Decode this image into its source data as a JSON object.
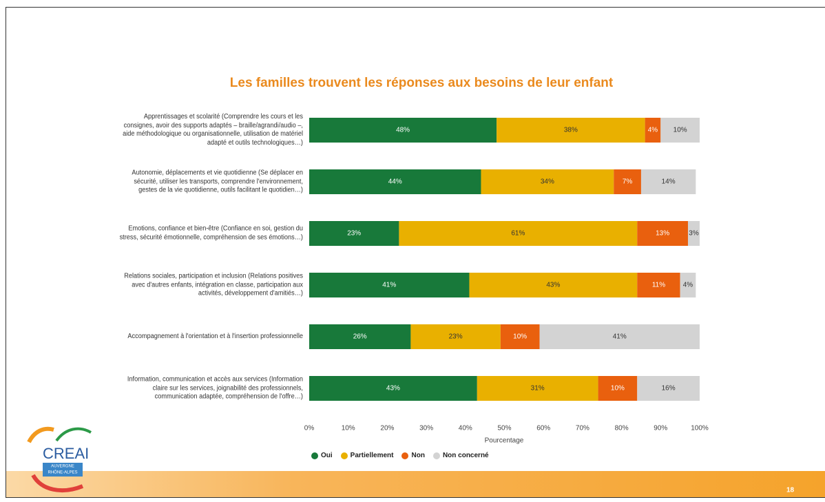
{
  "slide_number": "18",
  "logo": {
    "name": "CREAI",
    "region": [
      "AUVERGNE",
      "RHÔNE-ALPES"
    ]
  },
  "chart_data": {
    "type": "bar",
    "orientation": "horizontal",
    "stacked": true,
    "title": "Les familles trouvent les réponses aux besoins de leur enfant",
    "xlabel": "Pourcentage",
    "categories": [
      "Apprentissages et scolarité (Comprendre les cours et les consignes, avoir des supports adaptés – braille/agrandi/audio –, aide méthodologique ou organisationnelle, utilisation de matériel adapté et outils technologiques…)",
      "Autonomie, déplacements et vie quotidienne (Se déplacer en sécurité, utiliser les transports, comprendre l'environnement, gestes de la vie quotidienne, outils facilitant le quotidien…)",
      "Emotions, confiance et bien-être (Confiance en soi, gestion du stress, sécurité émotionnelle, compréhension de ses émotions…)",
      "Relations sociales, participation et inclusion (Relations positives avec d'autres enfants, intégration en classe, participation aux activités, développement d'amitiés…)",
      "Accompagnement à l'orientation et à l'insertion professionnelle",
      "Information, communication et accès aux services (Information claire sur les services, joignabilité des professionnels, communication adaptée, compréhension de l'offre…)"
    ],
    "series": [
      {
        "name": "Oui",
        "color": "#18793a",
        "values": [
          48,
          44,
          23,
          41,
          26,
          43
        ],
        "value_labels": [
          "48%",
          "44%",
          "23%",
          "41%",
          "26%",
          "43%"
        ]
      },
      {
        "name": "Partiellement",
        "color": "#e9b000",
        "values": [
          38,
          34,
          61,
          43,
          23,
          31
        ],
        "value_labels": [
          "38%",
          "34%",
          "61%",
          "43%",
          "23%",
          "31%"
        ]
      },
      {
        "name": "Non",
        "color": "#e9600e",
        "values": [
          4,
          7,
          13,
          11,
          10,
          10
        ],
        "value_labels": [
          "4%",
          "7%",
          "13%",
          "11%",
          "10%",
          "10%"
        ]
      },
      {
        "name": "Non concerné",
        "color": "#d3d3d3",
        "values": [
          10,
          14,
          3,
          4,
          41,
          16
        ],
        "value_labels": [
          "10%",
          "14%",
          "3%",
          "4%",
          "41%",
          "16%"
        ]
      }
    ],
    "xlim": [
      0,
      100
    ],
    "xticks": [
      {
        "value": 0,
        "label": "0%"
      },
      {
        "value": 10,
        "label": "10%"
      },
      {
        "value": 20,
        "label": "20%"
      },
      {
        "value": 30,
        "label": "30%"
      },
      {
        "value": 40,
        "label": "40%"
      },
      {
        "value": 50,
        "label": "50%"
      },
      {
        "value": 60,
        "label": "60%"
      },
      {
        "value": 70,
        "label": "70%"
      },
      {
        "value": 80,
        "label": "80%"
      },
      {
        "value": 90,
        "label": "90%"
      },
      {
        "value": 100,
        "label": "100%"
      }
    ],
    "grid": false,
    "legend": "bottom"
  }
}
